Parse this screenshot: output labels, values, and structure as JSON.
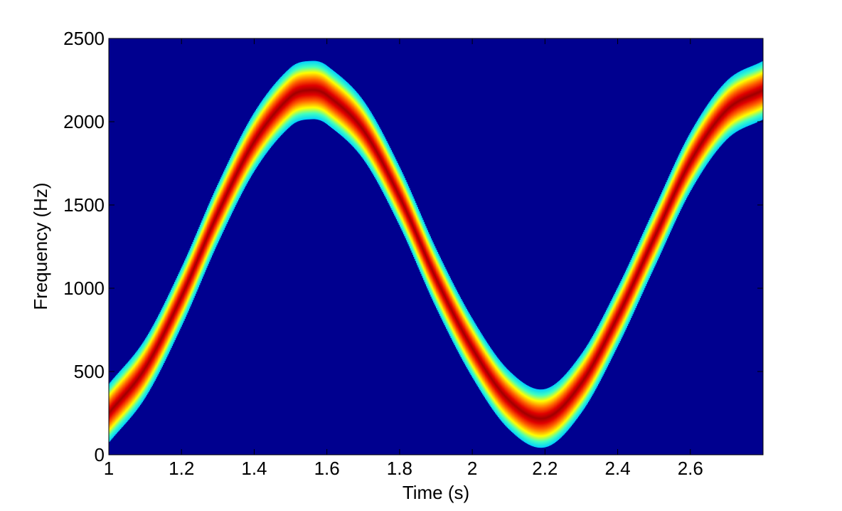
{
  "chart_data": {
    "type": "heatmap",
    "title": "",
    "xlabel": "Time (s)",
    "ylabel": "Frequency (Hz)",
    "xlim": [
      1,
      2.8
    ],
    "ylim": [
      0,
      2500
    ],
    "xticks": [
      1,
      1.2,
      1.4,
      1.6,
      1.8,
      2,
      2.2,
      2.4,
      2.6
    ],
    "yticks": [
      0,
      500,
      1000,
      1500,
      2000,
      2500
    ],
    "xtick_labels": [
      "1",
      "1.2",
      "1.4",
      "1.6",
      "1.8",
      "2",
      "2.2",
      "2.4",
      "2.6"
    ],
    "ytick_labels": [
      "0",
      "500",
      "1000",
      "1500",
      "2000",
      "2500"
    ],
    "grid": false,
    "colormap": "jet",
    "background_color": "#00008f",
    "ridge": {
      "name": "",
      "x": [
        1.0,
        1.1,
        1.2,
        1.3,
        1.4,
        1.5,
        1.56,
        1.6,
        1.7,
        1.8,
        1.9,
        2.0,
        2.1,
        2.2,
        2.3,
        2.4,
        2.5,
        2.6,
        2.7,
        2.8
      ],
      "y": [
        250,
        520,
        950,
        1450,
        1880,
        2150,
        2190,
        2160,
        1950,
        1550,
        1060,
        640,
        330,
        220,
        430,
        830,
        1300,
        1760,
        2070,
        2190
      ]
    },
    "band_halfwidth_hz": 175
  }
}
